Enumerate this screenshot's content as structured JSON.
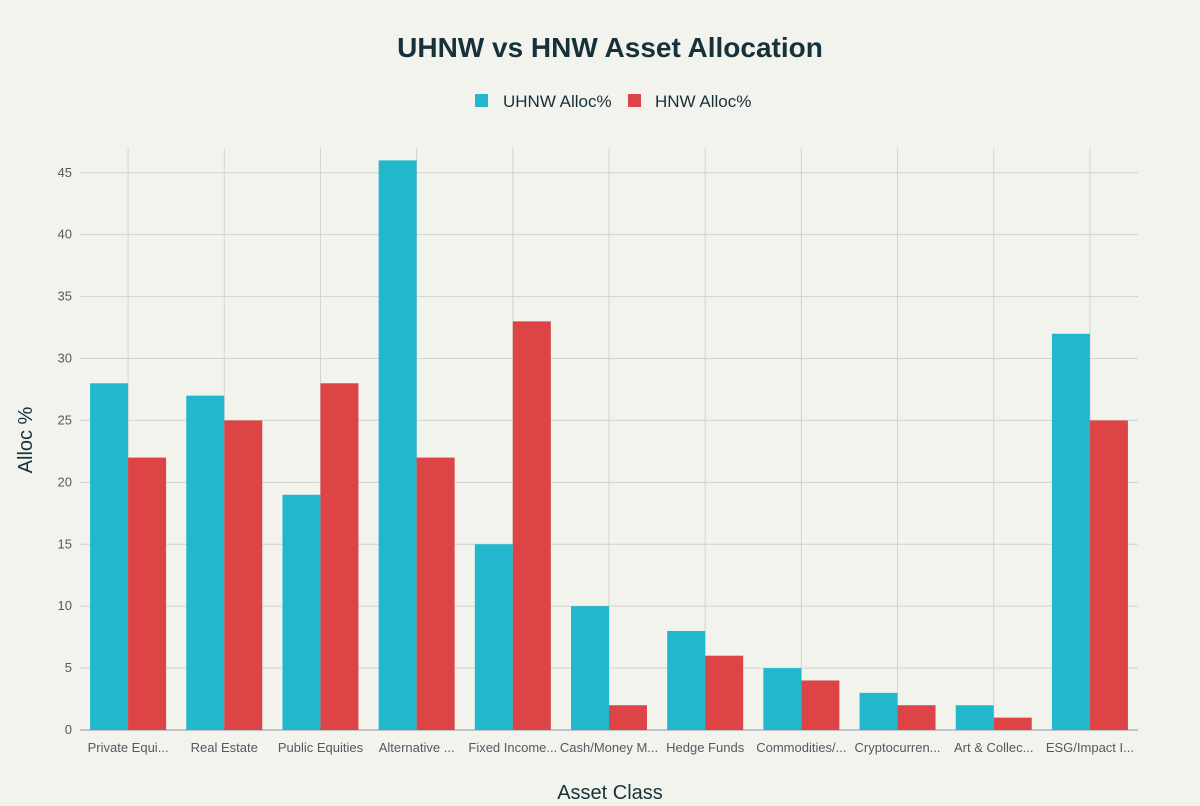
{
  "chart_data": {
    "type": "bar",
    "title": "UHNW vs HNW Asset Allocation",
    "xlabel": "Asset Class",
    "ylabel": "Alloc %",
    "ylim": [
      0,
      47
    ],
    "yticks": [
      0,
      5,
      10,
      15,
      20,
      25,
      30,
      35,
      40,
      45
    ],
    "grid": true,
    "legend_position": "top-center",
    "categories": [
      "Private Equi...",
      "Real Estate",
      "Public Equities",
      "Alternative ...",
      "Fixed Income...",
      "Cash/Money M...",
      "Hedge Funds",
      "Commodities/...",
      "Cryptocurren...",
      "Art & Collec...",
      "ESG/Impact I..."
    ],
    "series": [
      {
        "name": "UHNW Alloc%",
        "color": "#21b8cd",
        "values": [
          28,
          27,
          19,
          46,
          15,
          10,
          8,
          5,
          3,
          2,
          32
        ]
      },
      {
        "name": "HNW Alloc%",
        "color": "#dc4446",
        "values": [
          22,
          25,
          28,
          22,
          33,
          2,
          6,
          4,
          2,
          1,
          25
        ]
      }
    ]
  }
}
